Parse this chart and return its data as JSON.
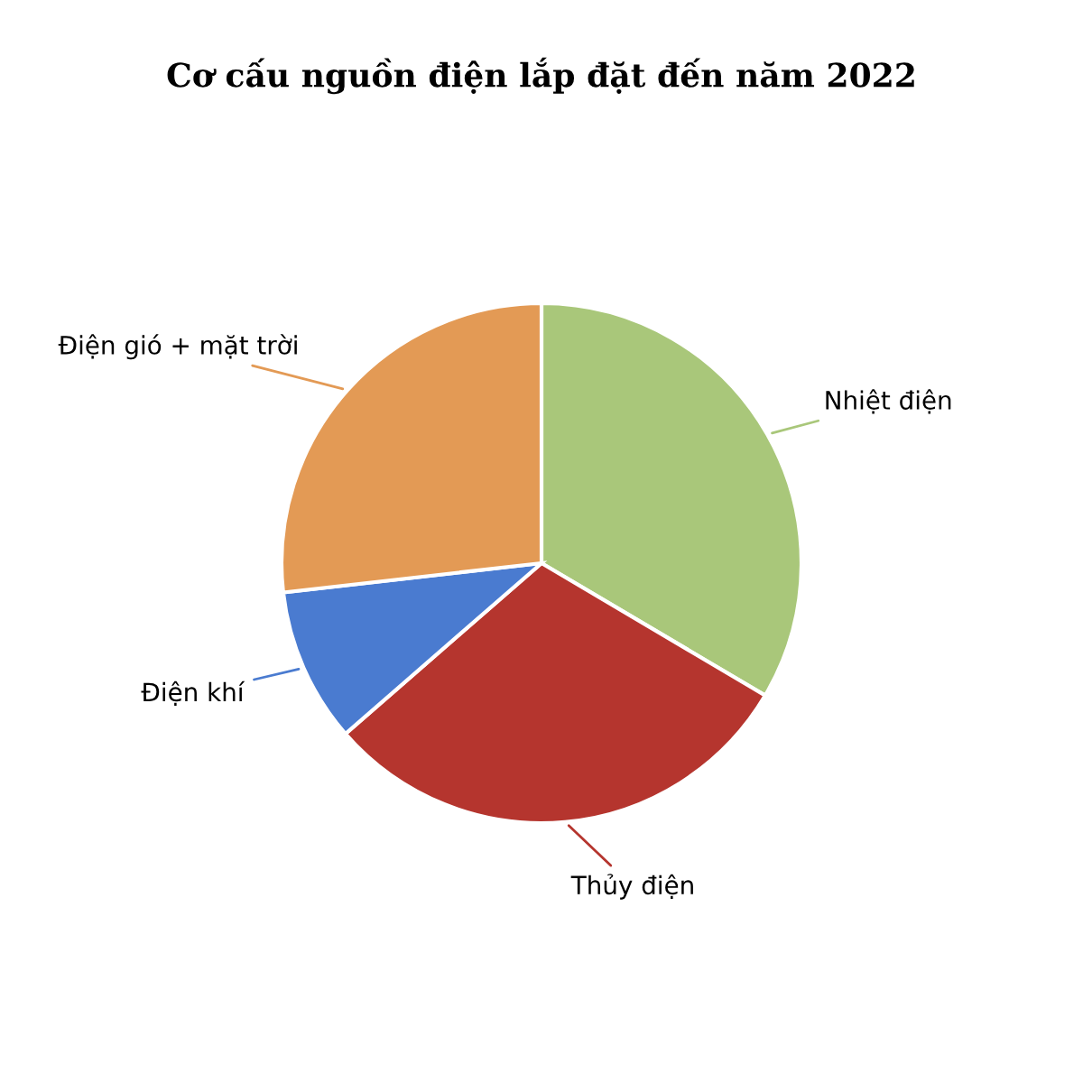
{
  "chart_data": {
    "type": "pie",
    "title": "Cơ cấu nguồn điện lắp đặt đến năm 2022",
    "categories": [
      "Nhiệt điện",
      "Thủy điện",
      "Điện khí",
      "Điện gió + mặt trời"
    ],
    "values": [
      33.5,
      30.1,
      9.6,
      26.8
    ],
    "colors": [
      "#a9c77a",
      "#b5352e",
      "#4a7bd0",
      "#e39a55"
    ],
    "legend": false
  }
}
